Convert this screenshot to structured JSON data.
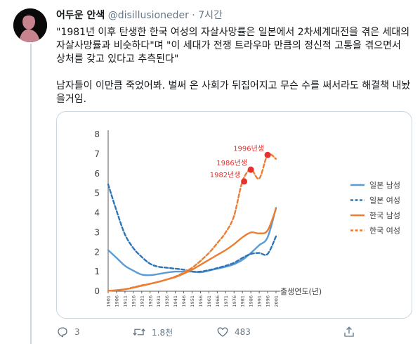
{
  "tweet": {
    "display_name": "어두운 안색",
    "handle": "@disillusioneder",
    "separator": "·",
    "time": "7시간",
    "body_paragraphs": [
      "\"1981년 이후 탄생한 한국 여성의 자살사망률은 일본에서 2차세계대전을 겪은 세대의 자살사망률과 비슷하다\"며 \"이 세대가 전쟁 트라우마 만큼의 정신적 고통을 겪으면서 상처를 갖고 있다고 추측된다\"",
      "남자들이 이만큼 죽었어봐. 벌써 온 사회가 뒤집어지고 무슨 수를 써서라도 해결책 내놨을거임."
    ],
    "actions": {
      "reply_count": "3",
      "retweet_count": "1.8천",
      "like_count": "483"
    }
  },
  "chart_data": {
    "type": "line",
    "title": "",
    "xlabel": "출생연도(년)",
    "ylabel": "",
    "x": [
      1901,
      1906,
      1911,
      1916,
      1921,
      1926,
      1931,
      1936,
      1941,
      1946,
      1951,
      1956,
      1961,
      1966,
      1971,
      1976,
      1981,
      1986,
      1991,
      1996,
      2001
    ],
    "ylim": [
      0,
      8
    ],
    "yticks": [
      0,
      1,
      2,
      3,
      4,
      5,
      6,
      7,
      8
    ],
    "grid": false,
    "legend_position": "right",
    "series": [
      {
        "name": "일본 남성",
        "color": "#5b9bd5",
        "dashed": false,
        "values": [
          2.1,
          1.7,
          1.3,
          1.05,
          0.85,
          0.82,
          0.88,
          0.95,
          1.0,
          1.0,
          1.0,
          0.97,
          1.05,
          1.15,
          1.25,
          1.38,
          1.6,
          1.95,
          2.35,
          2.75,
          4.25
        ]
      },
      {
        "name": "일본 여성",
        "color": "#2e75b6",
        "dashed": true,
        "values": [
          5.45,
          4.1,
          2.9,
          2.2,
          1.75,
          1.4,
          1.25,
          1.2,
          1.15,
          1.1,
          1.0,
          1.0,
          1.08,
          1.18,
          1.3,
          1.45,
          1.7,
          1.9,
          1.95,
          1.9,
          2.8
        ]
      },
      {
        "name": "한국 남성",
        "color": "#ed7d31",
        "dashed": false,
        "values": [
          0.02,
          0.05,
          0.1,
          0.18,
          0.28,
          0.38,
          0.48,
          0.6,
          0.72,
          0.9,
          1.1,
          1.35,
          1.6,
          1.85,
          2.1,
          2.4,
          2.75,
          3.0,
          2.95,
          3.1,
          4.2
        ]
      },
      {
        "name": "한국 여성",
        "color": "#ed7d31",
        "dashed": true,
        "values": [
          0.02,
          0.05,
          0.1,
          0.2,
          0.3,
          0.38,
          0.48,
          0.6,
          0.75,
          0.95,
          1.2,
          1.55,
          1.95,
          2.45,
          3.0,
          3.85,
          5.6,
          6.2,
          5.75,
          6.95,
          6.75
        ]
      }
    ],
    "annotations": [
      {
        "label": "1982년생",
        "x": 1982,
        "y": 5.6
      },
      {
        "label": "1986년생",
        "x": 1986,
        "y": 6.2
      },
      {
        "label": "1996년생",
        "x": 1996,
        "y": 6.95
      }
    ],
    "annotation_color": "#e8312f"
  }
}
